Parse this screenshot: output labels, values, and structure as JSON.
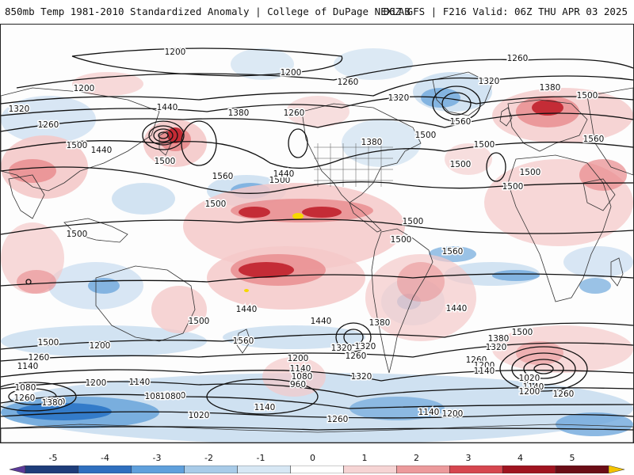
{
  "header": {
    "title_left": "850mb Temp 1981-2010 Standardized Anomaly | College of DuPage NEXLAB",
    "title_right": "06Z GFS | F216 Valid: 06Z THU APR 03 2025"
  },
  "map": {
    "contour_labels": [
      "1200",
      "1200",
      "1260",
      "1320",
      "1380",
      "1200",
      "1260",
      "1320",
      "1260",
      "1260",
      "1380",
      "1320",
      "1440",
      "1500",
      "1440",
      "1560",
      "1500",
      "1560",
      "1500",
      "1500",
      "1500",
      "1380",
      "1500",
      "1440",
      "1560",
      "1500",
      "1500",
      "1500",
      "1500",
      "1500",
      "1440",
      "1380",
      "1500",
      "1500",
      "1260",
      "1140",
      "1200",
      "1080",
      "1260",
      "1380",
      "1140",
      "1200",
      "1080",
      "1020",
      "1140",
      "1080",
      "1020",
      "960",
      "1080",
      "1140",
      "1200",
      "1260",
      "1320",
      "1440",
      "1380",
      "1320",
      "1500",
      "1260",
      "1200",
      "1140",
      "1020",
      "1140",
      "1200",
      "1260",
      "1140",
      "1200",
      "1260",
      "1380",
      "1320",
      "1560",
      "1500",
      "1560",
      "1440",
      "1320",
      "1500"
    ],
    "colors": {
      "warm_light": "#f4c9c9",
      "warm_mid": "#e8898c",
      "warm_dark": "#c0202b",
      "warm_extreme": "#f5d800",
      "cool_light": "#c7dcef",
      "cool_mid": "#6fa8dc",
      "cool_dark": "#2b75c6"
    }
  },
  "colorbar": {
    "ticks": [
      "-5",
      "-4",
      "-3",
      "-2",
      "-1",
      "0",
      "1",
      "2",
      "3",
      "4",
      "5"
    ],
    "colors": [
      "#5b3a99",
      "#1e3d7a",
      "#2f6fbf",
      "#5fa0dc",
      "#a8cbe8",
      "#d7e7f4",
      "#ffffff",
      "#f6d4d4",
      "#ec9a9c",
      "#d6464f",
      "#a01420",
      "#6b0d16",
      "#f5c400"
    ]
  }
}
